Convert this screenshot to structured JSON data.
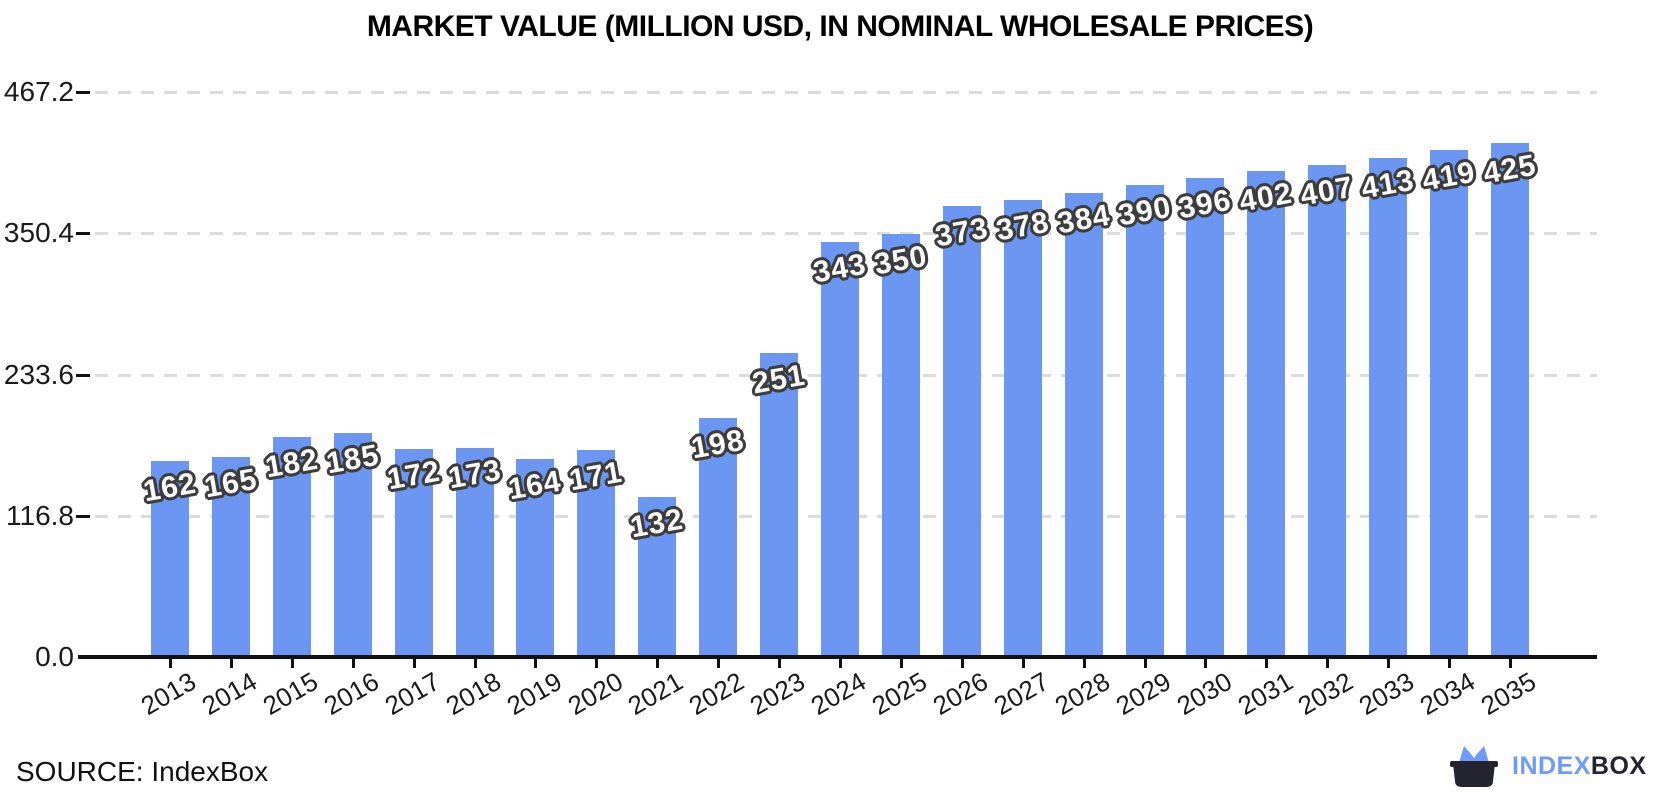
{
  "title": "MARKET VALUE (MILLION USD, IN NOMINAL WHOLESALE PRICES)",
  "source": {
    "label": "SOURCE: IndexBox"
  },
  "logo": {
    "icon": "indexbox-cat-box-logo",
    "text_primary": "INDEX",
    "text_secondary": "BOX",
    "color_primary": "#6D9BF7",
    "color_secondary": "#23242E"
  },
  "chart_data": {
    "type": "bar",
    "title": "MARKET VALUE (MILLION USD, IN NOMINAL WHOLESALE PRICES)",
    "categories": [
      "2013",
      "2014",
      "2015",
      "2016",
      "2017",
      "2018",
      "2019",
      "2020",
      "2021",
      "2022",
      "2023",
      "2024",
      "2025",
      "2026",
      "2027",
      "2028",
      "2029",
      "2030",
      "2031",
      "2032",
      "2033",
      "2034",
      "2035"
    ],
    "values": [
      162,
      165,
      182,
      185,
      172,
      173,
      164,
      171,
      132,
      198,
      251,
      343,
      350,
      373,
      378,
      384,
      390,
      396,
      402,
      407,
      413,
      419,
      425
    ],
    "xlabel": "",
    "ylabel": "",
    "ylim": [
      0,
      467.2
    ],
    "yticks": [
      0,
      116.8,
      233.6,
      350.4,
      467.2
    ],
    "grid": "horizontal-dashed",
    "gridline_color": "#dcdcdc",
    "legend": "none",
    "bar_color": "#6B96F2",
    "value_label_style": "white-with-dark-outline"
  }
}
